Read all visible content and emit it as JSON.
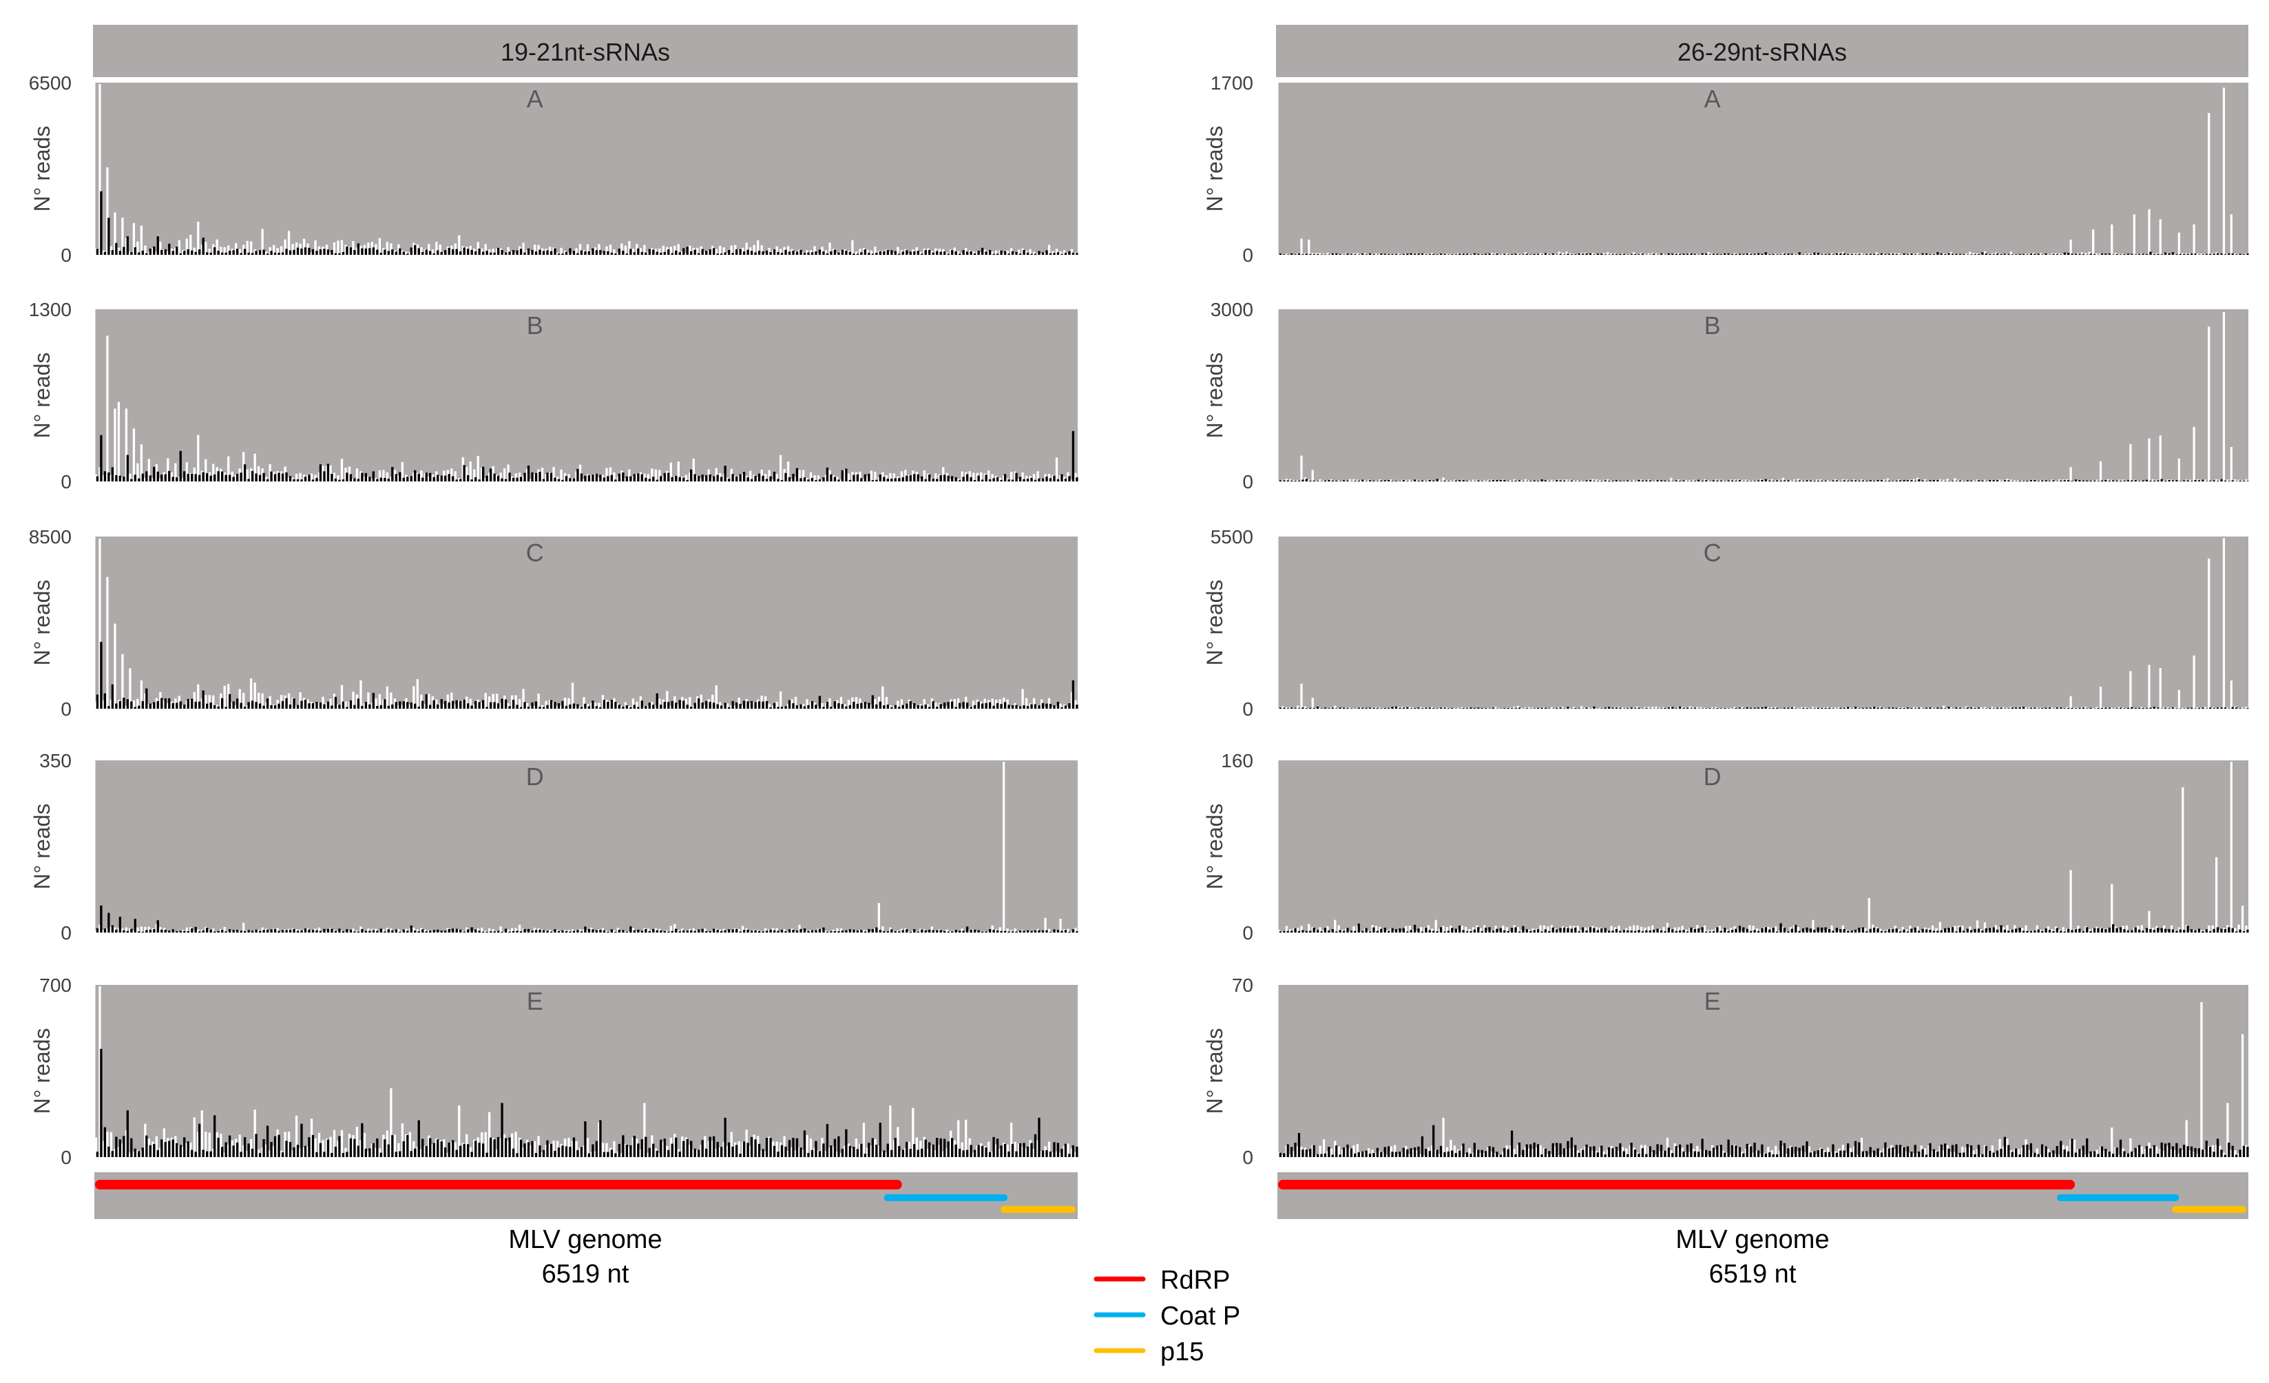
{
  "colors": {
    "panel_bg": "#aeaaa9",
    "sense": "#ffffff",
    "antisense": "#000000",
    "header_text": "#1a1a1a",
    "panel_letter": "#595959",
    "axis_text": "#404040"
  },
  "chart_data": [
    {
      "type": "bar",
      "title": "19-21nt-sRNAs",
      "xlabel": "MLV genome",
      "xlabel_sub": "6519 nt",
      "genome_length": 6519,
      "panels": [
        {
          "label": "A",
          "ylabel": "N° reads",
          "ylim": [
            0,
            6500
          ],
          "tick_labels": [
            "6500",
            "0"
          ],
          "white_peaks": [
            [
              0.002,
              6500
            ],
            [
              0.012,
              3300
            ],
            [
              0.018,
              1600
            ],
            [
              0.028,
              1400
            ],
            [
              0.038,
              1200
            ],
            [
              0.048,
              1100
            ],
            [
              0.105,
              1250
            ],
            [
              0.3,
              300
            ]
          ],
          "black_peaks": [
            [
              0.004,
              2400
            ],
            [
              0.01,
              1400
            ],
            [
              0.03,
              700
            ],
            [
              0.06,
              700
            ],
            [
              0.11,
              650
            ]
          ],
          "white_base": 450,
          "black_base": 250,
          "white_trend": 0.5,
          "black_trend": 0.3,
          "seed": 11
        },
        {
          "label": "B",
          "ylabel": "N° reads",
          "ylim": [
            0,
            1300
          ],
          "tick_labels": [
            "1300",
            "0"
          ],
          "white_peaks": [
            [
              0.012,
              1100
            ],
            [
              0.02,
              550
            ],
            [
              0.025,
              600
            ],
            [
              0.032,
              550
            ],
            [
              0.04,
              400
            ],
            [
              0.048,
              280
            ],
            [
              0.105,
              350
            ],
            [
              0.7,
              200
            ],
            [
              0.98,
              180
            ]
          ],
          "black_peaks": [
            [
              0.004,
              350
            ],
            [
              0.03,
              200
            ],
            [
              0.085,
              230
            ],
            [
              0.995,
              380
            ],
            [
              0.44,
              120
            ]
          ],
          "white_base": 110,
          "black_base": 70,
          "white_trend": 0.3,
          "black_trend": 0.2,
          "seed": 23
        },
        {
          "label": "C",
          "ylabel": "N° reads",
          "ylim": [
            0,
            8500
          ],
          "tick_labels": [
            "8500",
            "0"
          ],
          "white_peaks": [
            [
              0.002,
              8400
            ],
            [
              0.012,
              6500
            ],
            [
              0.02,
              4200
            ],
            [
              0.028,
              2700
            ],
            [
              0.035,
              2000
            ],
            [
              0.045,
              1400
            ],
            [
              0.105,
              1200
            ],
            [
              0.55,
              500
            ]
          ],
          "black_peaks": [
            [
              0.004,
              3300
            ],
            [
              0.015,
              1200
            ],
            [
              0.05,
              1000
            ],
            [
              0.11,
              900
            ],
            [
              0.997,
              1400
            ]
          ],
          "white_base": 750,
          "black_base": 450,
          "white_trend": 0.3,
          "black_trend": 0.25,
          "seed": 37
        },
        {
          "label": "D",
          "ylabel": "N° reads",
          "ylim": [
            0,
            350
          ],
          "tick_labels": [
            "350",
            "0"
          ],
          "white_peaks": [
            [
              0.8,
              60
            ],
            [
              0.927,
              350
            ],
            [
              0.97,
              30
            ],
            [
              0.985,
              28
            ]
          ],
          "black_peaks": [
            [
              0.004,
              55
            ],
            [
              0.012,
              40
            ],
            [
              0.025,
              32
            ],
            [
              0.04,
              28
            ],
            [
              0.06,
              25
            ]
          ],
          "white_base": 10,
          "black_base": 8,
          "white_trend": 0.2,
          "black_trend": 0.1,
          "seed": 41
        },
        {
          "label": "E",
          "ylabel": "N° reads",
          "ylim": [
            0,
            700
          ],
          "tick_labels": [
            "700",
            "0"
          ],
          "white_peaks": [
            [
              0.005,
              700
            ],
            [
              0.11,
              190
            ],
            [
              0.3,
              280
            ],
            [
              0.37,
              210
            ],
            [
              0.56,
              220
            ],
            [
              0.81,
              210
            ],
            [
              0.835,
              200
            ],
            [
              0.88,
              150
            ]
          ],
          "black_peaks": [
            [
              0.004,
              440
            ],
            [
              0.03,
              190
            ],
            [
              0.12,
              170
            ],
            [
              0.415,
              220
            ],
            [
              0.515,
              150
            ],
            [
              0.64,
              160
            ],
            [
              0.96,
              160
            ]
          ],
          "white_base": 100,
          "black_base": 90,
          "white_trend": 0.2,
          "black_trend": 0.1,
          "seed": 53
        }
      ],
      "genes": [
        {
          "name": "RdRP",
          "start": 0,
          "end": 0.82,
          "color": "#ff0000",
          "row": 0
        },
        {
          "name": "Coat P",
          "start": 0.81,
          "end": 0.93,
          "color": "#00b0f0",
          "row": 1
        },
        {
          "name": "p15",
          "start": 0.93,
          "end": 1.0,
          "color": "#ffc000",
          "row": 2
        }
      ]
    },
    {
      "type": "bar",
      "title": "26-29nt-sRNAs",
      "xlabel": "MLV genome",
      "xlabel_sub": "6519 nt",
      "genome_length": 6519,
      "panels": [
        {
          "label": "A",
          "ylabel": "N° reads",
          "ylim": [
            0,
            1700
          ],
          "tick_labels": [
            "1700",
            "0"
          ],
          "white_peaks": [
            [
              0.022,
              160
            ],
            [
              0.03,
              150
            ],
            [
              0.82,
              150
            ],
            [
              0.84,
              250
            ],
            [
              0.86,
              300
            ],
            [
              0.885,
              400
            ],
            [
              0.9,
              450
            ],
            [
              0.91,
              350
            ],
            [
              0.945,
              300
            ],
            [
              0.96,
              1400
            ],
            [
              0.975,
              1650
            ],
            [
              0.985,
              400
            ],
            [
              0.93,
              220
            ]
          ],
          "black_peaks": [
            [
              0.5,
              25
            ],
            [
              0.9,
              30
            ]
          ],
          "white_base": 20,
          "black_base": 15,
          "white_trend": 0.0,
          "black_trend": 0.0,
          "seed": 61
        },
        {
          "label": "B",
          "ylabel": "N° reads",
          "ylim": [
            0,
            3000
          ],
          "tick_labels": [
            "3000",
            "0"
          ],
          "white_peaks": [
            [
              0.022,
              450
            ],
            [
              0.035,
              200
            ],
            [
              0.82,
              250
            ],
            [
              0.85,
              350
            ],
            [
              0.88,
              650
            ],
            [
              0.9,
              750
            ],
            [
              0.91,
              800
            ],
            [
              0.945,
              950
            ],
            [
              0.96,
              2700
            ],
            [
              0.975,
              2950
            ],
            [
              0.985,
              600
            ],
            [
              0.93,
              400
            ]
          ],
          "black_peaks": [
            [
              0.5,
              40
            ]
          ],
          "white_base": 40,
          "black_base": 25,
          "white_trend": 0.0,
          "black_trend": 0.0,
          "seed": 71
        },
        {
          "label": "C",
          "ylabel": "N° reads",
          "ylim": [
            0,
            5500
          ],
          "tick_labels": [
            "5500",
            "0"
          ],
          "white_peaks": [
            [
              0.022,
              800
            ],
            [
              0.035,
              350
            ],
            [
              0.82,
              400
            ],
            [
              0.85,
              700
            ],
            [
              0.88,
              1200
            ],
            [
              0.9,
              1400
            ],
            [
              0.91,
              1300
            ],
            [
              0.945,
              1700
            ],
            [
              0.96,
              4800
            ],
            [
              0.975,
              5450
            ],
            [
              0.985,
              900
            ],
            [
              0.93,
              600
            ]
          ],
          "black_peaks": [
            [
              0.5,
              60
            ]
          ],
          "white_base": 60,
          "black_base": 40,
          "white_trend": 0.0,
          "black_trend": 0.0,
          "seed": 83
        },
        {
          "label": "D",
          "ylabel": "N° reads",
          "ylim": [
            0,
            160
          ],
          "tick_labels": [
            "160",
            "0"
          ],
          "white_peaks": [
            [
              0.03,
              8
            ],
            [
              0.61,
              32
            ],
            [
              0.82,
              58
            ],
            [
              0.86,
              45
            ],
            [
              0.9,
              20
            ],
            [
              0.935,
              135
            ],
            [
              0.97,
              70
            ],
            [
              0.985,
              160
            ],
            [
              0.995,
              25
            ]
          ],
          "black_peaks": [
            [
              0.5,
              5
            ]
          ],
          "white_base": 7,
          "black_base": 5,
          "white_trend": 0.0,
          "black_trend": 0.0,
          "seed": 97
        },
        {
          "label": "E",
          "ylabel": "N° reads",
          "ylim": [
            0,
            70
          ],
          "tick_labels": [
            "70",
            "0"
          ],
          "white_peaks": [
            [
              0.17,
              16
            ],
            [
              0.86,
              12
            ],
            [
              0.94,
              15
            ],
            [
              0.955,
              63
            ],
            [
              0.98,
              22
            ],
            [
              0.997,
              50
            ]
          ],
          "black_peaks": [
            [
              0.157,
              13
            ],
            [
              0.3,
              8
            ],
            [
              0.6,
              6
            ]
          ],
          "white_base": 5,
          "black_base": 6,
          "white_trend": 0.0,
          "black_trend": 0.0,
          "seed": 109
        }
      ],
      "genes": [
        {
          "name": "RdRP",
          "start": 0,
          "end": 0.82,
          "color": "#ff0000",
          "row": 0
        },
        {
          "name": "Coat P",
          "start": 0.81,
          "end": 0.93,
          "color": "#00b0f0",
          "row": 1
        },
        {
          "name": "p15",
          "start": 0.93,
          "end": 1.0,
          "color": "#ffc000",
          "row": 2
        }
      ]
    }
  ],
  "legend": [
    {
      "label": "RdRP",
      "color": "#ff0000"
    },
    {
      "label": "Coat P",
      "color": "#00b0f0"
    },
    {
      "label": "p15",
      "color": "#ffc000"
    }
  ]
}
